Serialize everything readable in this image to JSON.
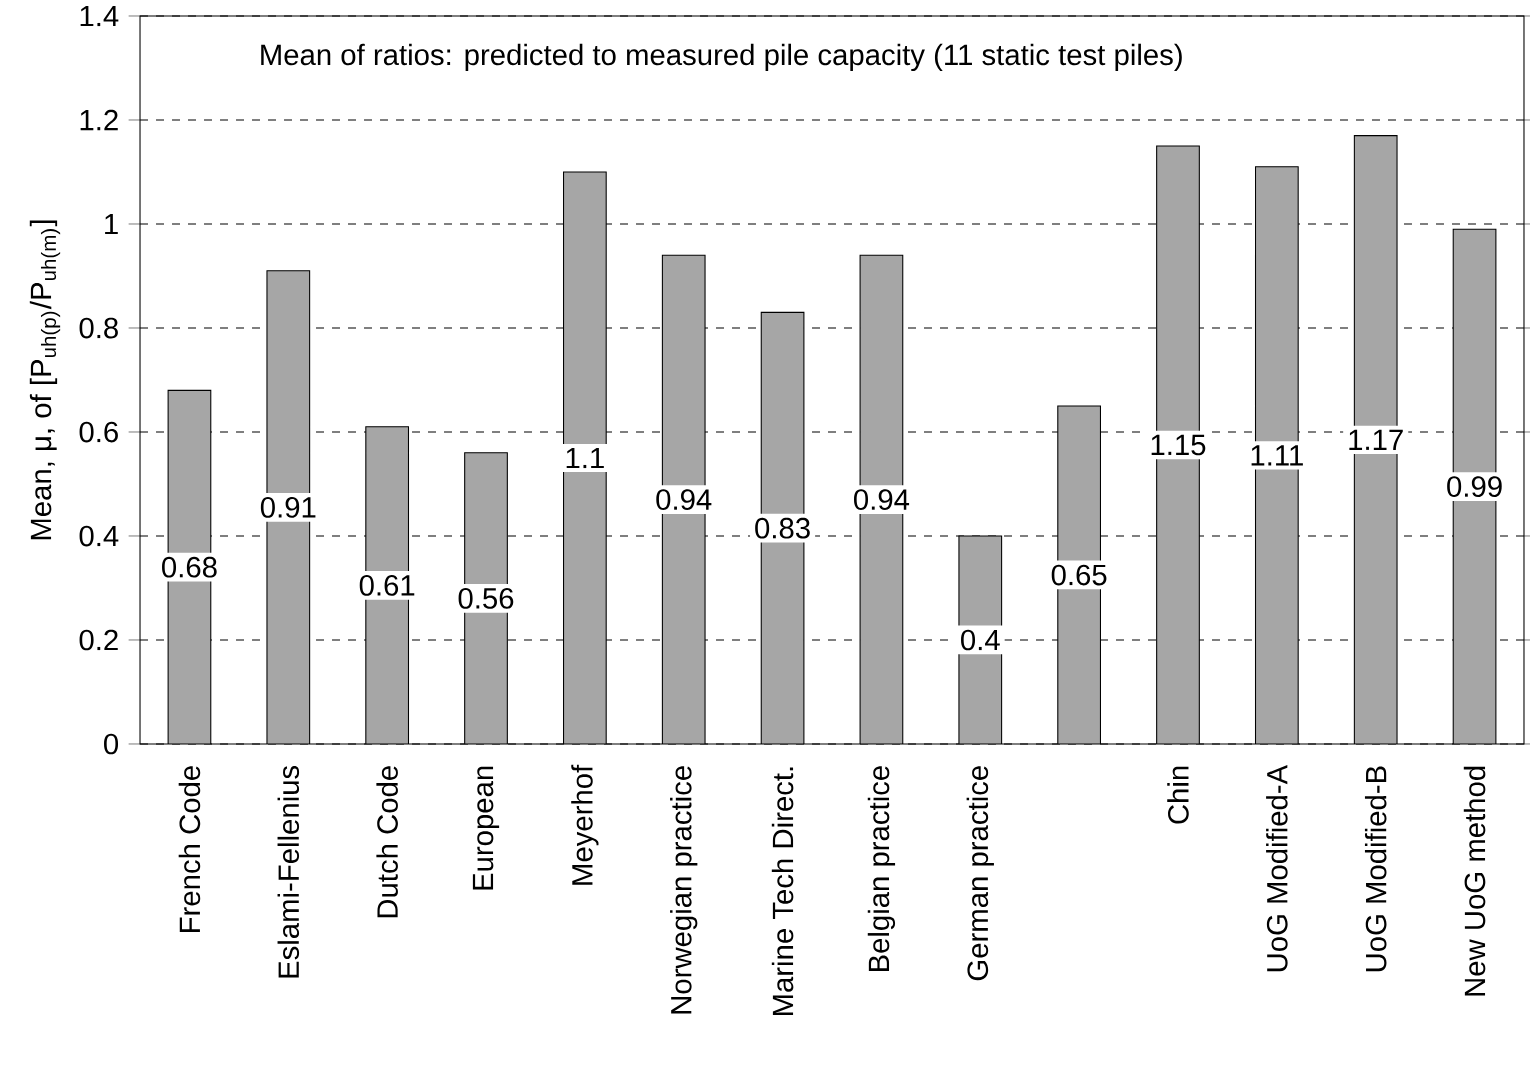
{
  "chart_data": {
    "type": "bar",
    "title": "Mean of ratios: predicted to measured pile capacity (11 static test piles)",
    "ylabel": "Mean, μ, of [P$_{uh(p)}$/P$_{uh(m)}$]",
    "categories": [
      "French Code",
      "Eslami-Fellenius",
      "Dutch Code",
      "European",
      "Meyerhof",
      "Norwegian practice",
      "Marine Tech Direct.",
      "Belgian practice",
      "German practice",
      null,
      "Chin",
      "UoG Modified-A",
      "UoG Modified-B",
      "New UoG method"
    ],
    "values": [
      0.68,
      0.91,
      0.61,
      0.56,
      1.1,
      0.94,
      0.83,
      0.94,
      0.4,
      0.65,
      1.15,
      1.11,
      1.17,
      0.99
    ],
    "value_labels": [
      "0.68",
      "0.91",
      "0.61",
      "0.56",
      "1.1",
      "0.94",
      "0.83",
      "0.94",
      "0.4",
      "0.65",
      "1.15",
      "1.11",
      "1.17",
      "0.99"
    ],
    "color": "#a6a6a6",
    "ylim": [
      0,
      1.4
    ],
    "yticks": [
      0,
      0.2,
      0.4,
      0.6,
      0.8,
      1,
      1.2,
      1.4
    ],
    "grid": "y"
  }
}
